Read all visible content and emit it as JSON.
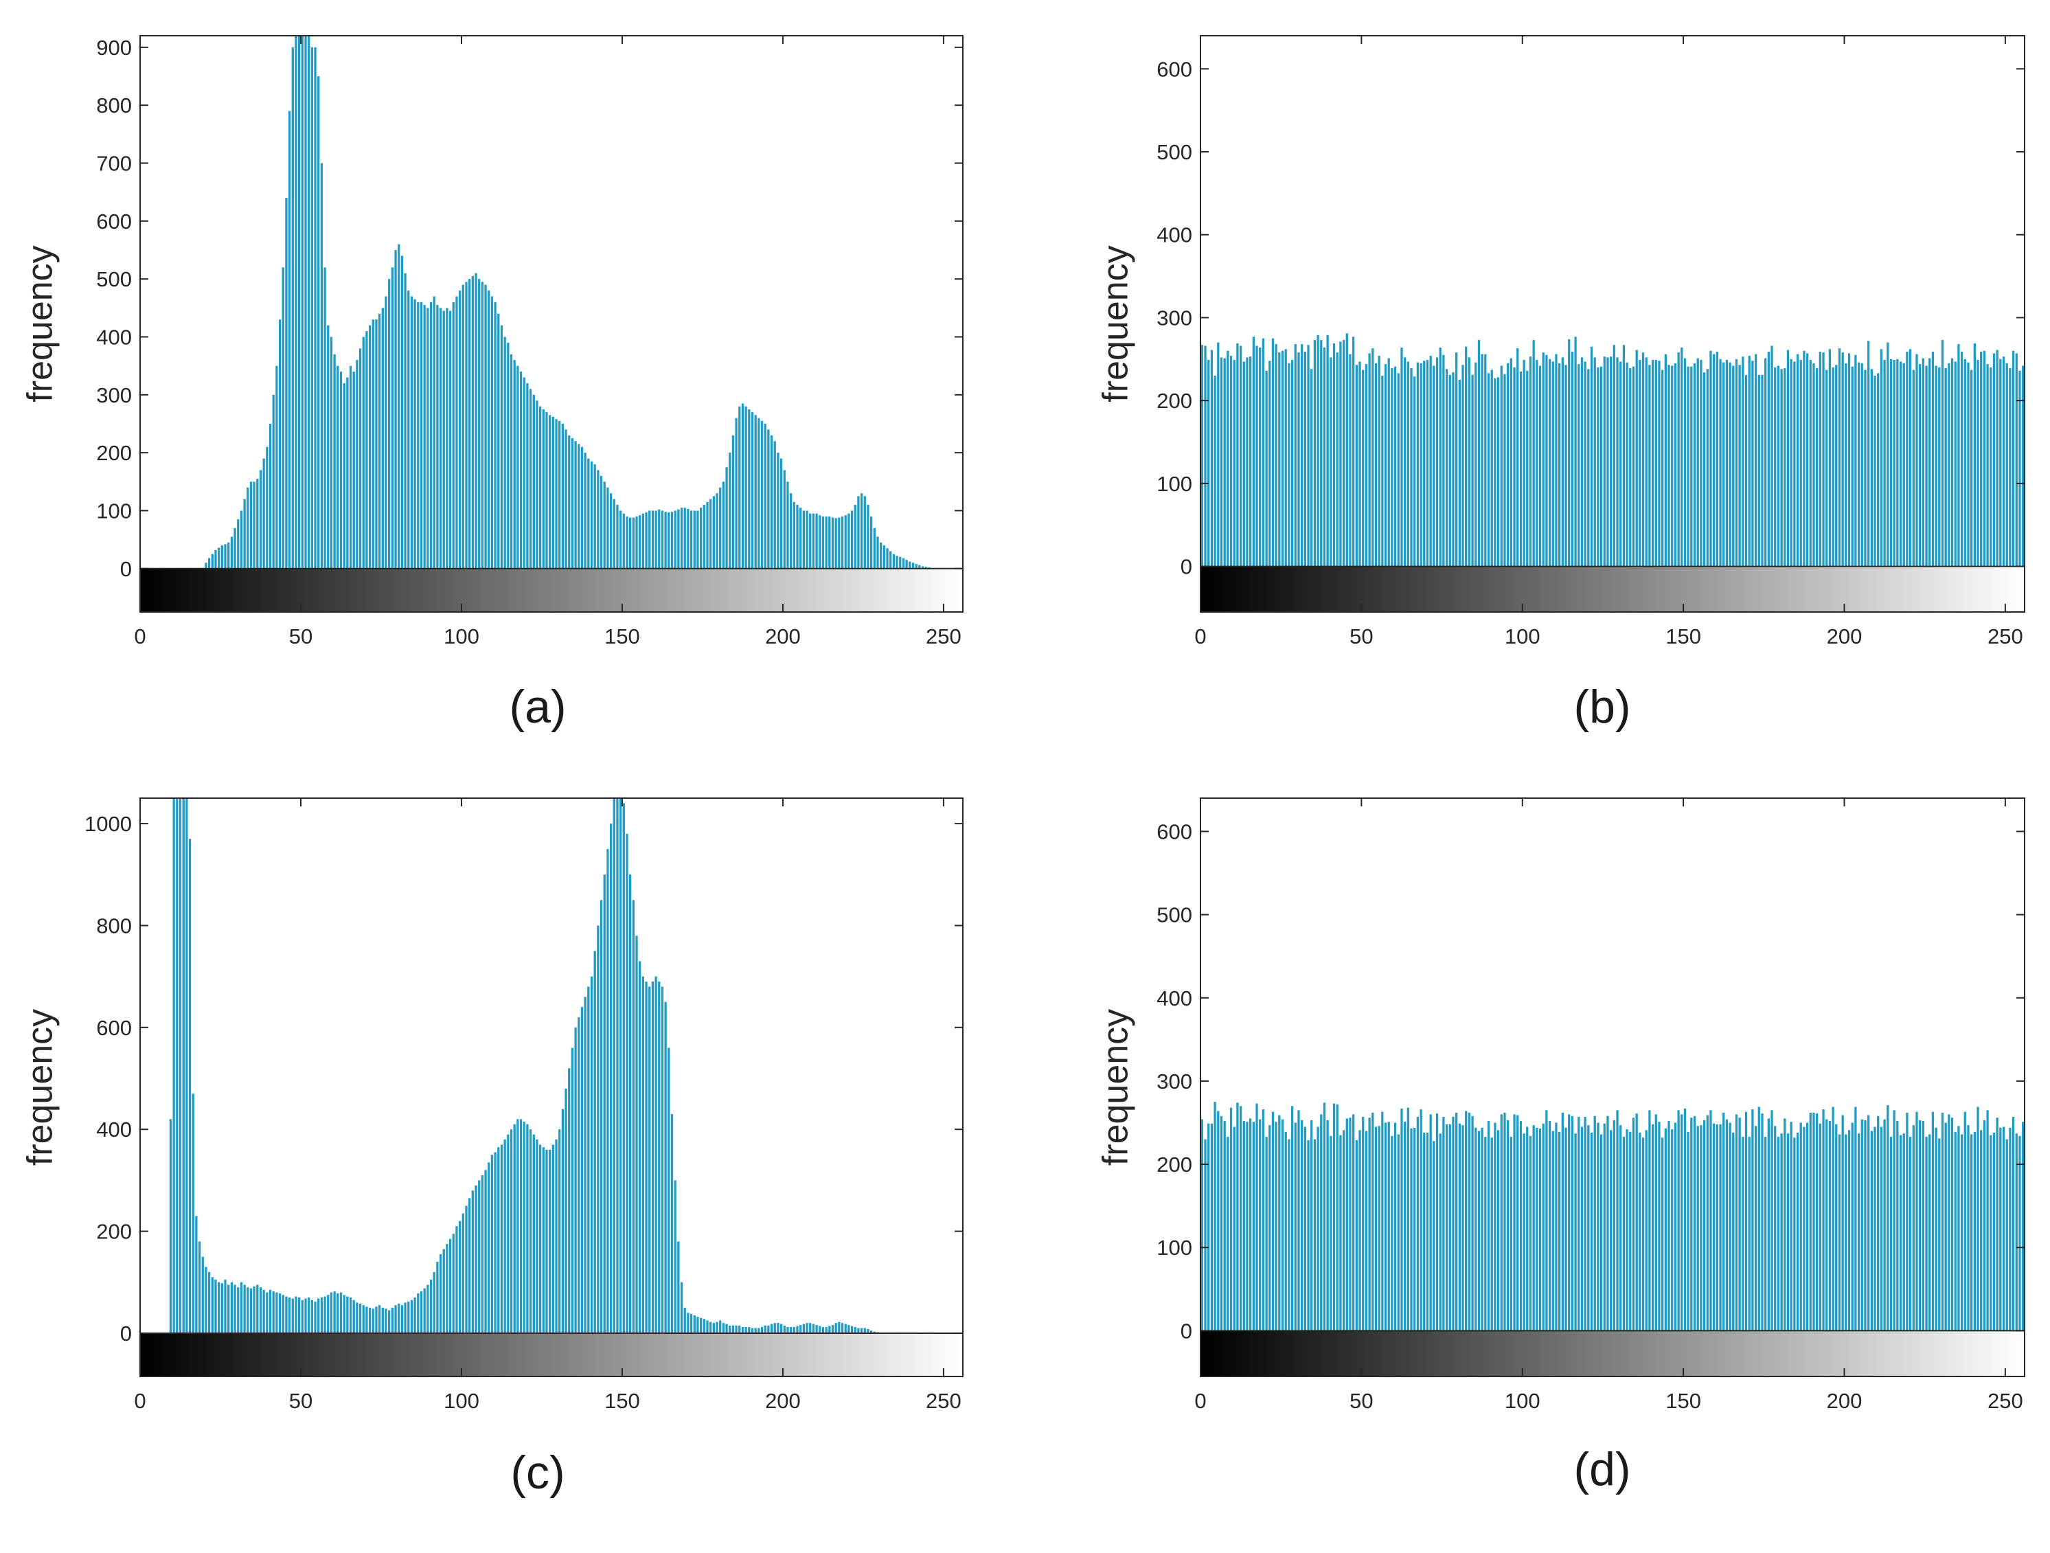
{
  "chart_data": [
    {
      "id": "a",
      "type": "bar",
      "caption": "(a)",
      "ylabel": "frequency",
      "xlabel": "",
      "xlim": [
        0,
        256
      ],
      "ylim": [
        -75,
        920
      ],
      "xticks": [
        0,
        50,
        100,
        150,
        200,
        250
      ],
      "xtick_labels": [
        "0",
        "50",
        "100",
        "150",
        "200",
        "250"
      ],
      "yticks": [
        0,
        100,
        200,
        300,
        400,
        500,
        600,
        700,
        800,
        900
      ],
      "ytick_labels": [
        "0",
        "100",
        "200",
        "300",
        "400",
        "500",
        "600",
        "700",
        "800",
        "900"
      ],
      "colorbar": "grayscale 0-255",
      "bar_color": "#1f9bc4",
      "x_start": 0,
      "values": [
        0,
        0,
        0,
        0,
        0,
        0,
        0,
        0,
        0,
        0,
        0,
        0,
        0,
        0,
        0,
        0,
        0,
        0,
        0,
        0,
        10,
        18,
        25,
        32,
        36,
        40,
        42,
        45,
        55,
        70,
        85,
        100,
        120,
        140,
        150,
        150,
        155,
        170,
        190,
        210,
        250,
        300,
        350,
        430,
        520,
        640,
        790,
        900,
        930,
        940,
        930,
        920,
        920,
        900,
        900,
        850,
        700,
        520,
        420,
        400,
        370,
        350,
        340,
        320,
        330,
        350,
        340,
        360,
        380,
        400,
        410,
        420,
        430,
        430,
        440,
        450,
        470,
        500,
        520,
        550,
        560,
        540,
        510,
        480,
        470,
        465,
        460,
        460,
        455,
        450,
        460,
        470,
        455,
        450,
        445,
        450,
        445,
        460,
        470,
        480,
        490,
        495,
        500,
        505,
        510,
        500,
        495,
        490,
        480,
        470,
        460,
        440,
        420,
        400,
        390,
        370,
        360,
        350,
        340,
        330,
        320,
        310,
        300,
        290,
        280,
        275,
        270,
        265,
        262,
        258,
        255,
        250,
        240,
        230,
        225,
        220,
        215,
        210,
        200,
        190,
        185,
        180,
        170,
        160,
        150,
        140,
        130,
        120,
        110,
        100,
        95,
        90,
        88,
        88,
        90,
        92,
        95,
        97,
        100,
        100,
        100,
        102,
        100,
        98,
        97,
        98,
        100,
        102,
        105,
        105,
        103,
        100,
        100,
        100,
        105,
        110,
        115,
        120,
        125,
        130,
        140,
        150,
        175,
        200,
        230,
        260,
        280,
        285,
        280,
        275,
        270,
        265,
        260,
        255,
        250,
        240,
        230,
        220,
        200,
        190,
        170,
        150,
        130,
        115,
        110,
        105,
        100,
        100,
        95,
        95,
        95,
        92,
        90,
        90,
        90,
        88,
        87,
        88,
        90,
        92,
        95,
        100,
        110,
        125,
        130,
        125,
        110,
        90,
        70,
        55,
        45,
        40,
        35,
        30,
        25,
        22,
        20,
        18,
        15,
        12,
        10,
        8,
        6,
        4,
        3,
        2,
        1,
        0,
        0,
        0,
        0,
        0,
        0,
        0,
        0,
        0
      ]
    },
    {
      "id": "b",
      "type": "bar",
      "caption": "(b)",
      "ylabel": "frequency",
      "xlabel": "",
      "xlim": [
        0,
        256
      ],
      "ylim": [
        -55,
        640
      ],
      "xticks": [
        0,
        50,
        100,
        150,
        200,
        250
      ],
      "xtick_labels": [
        "0",
        "50",
        "100",
        "150",
        "200",
        "250"
      ],
      "yticks": [
        0,
        100,
        200,
        300,
        400,
        500,
        600
      ],
      "ytick_labels": [
        "0",
        "100",
        "200",
        "300",
        "400",
        "500",
        "600"
      ],
      "colorbar": "grayscale 0-255",
      "bar_color": "#1f9bc4",
      "values": [
        267,
        266,
        249,
        261,
        230,
        270,
        252,
        251,
        260,
        254,
        249,
        269,
        266,
        247,
        252,
        253,
        277,
        266,
        264,
        275,
        236,
        248,
        275,
        268,
        258,
        260,
        262,
        245,
        249,
        268,
        258,
        268,
        259,
        267,
        238,
        273,
        279,
        273,
        264,
        279,
        252,
        269,
        258,
        271,
        273,
        281,
        256,
        277,
        243,
        247,
        237,
        244,
        257,
        263,
        245,
        254,
        230,
        244,
        251,
        239,
        241,
        233,
        264,
        252,
        247,
        239,
        229,
        246,
        245,
        248,
        249,
        254,
        242,
        252,
        264,
        255,
        238,
        231,
        234,
        258,
        225,
        243,
        265,
        252,
        231,
        246,
        273,
        256,
        256,
        233,
        237,
        227,
        228,
        242,
        232,
        245,
        251,
        240,
        263,
        235,
        249,
        236,
        253,
        273,
        249,
        242,
        258,
        255,
        250,
        247,
        256,
        245,
        252,
        243,
        274,
        259,
        277,
        244,
        252,
        247,
        238,
        265,
        252,
        240,
        241,
        253,
        252,
        253,
        267,
        252,
        247,
        267,
        246,
        239,
        241,
        261,
        249,
        258,
        252,
        243,
        249,
        249,
        248,
        237,
        256,
        243,
        242,
        245,
        258,
        264,
        251,
        241,
        241,
        245,
        251,
        249,
        234,
        238,
        260,
        256,
        259,
        250,
        246,
        249,
        246,
        242,
        250,
        243,
        253,
        231,
        254,
        248,
        256,
        231,
        231,
        251,
        259,
        266,
        240,
        242,
        238,
        239,
        261,
        250,
        247,
        256,
        249,
        260,
        257,
        249,
        245,
        239,
        259,
        258,
        237,
        262,
        240,
        243,
        263,
        258,
        245,
        257,
        241,
        255,
        246,
        245,
        237,
        272,
        238,
        230,
        233,
        262,
        249,
        270,
        250,
        249,
        250,
        247,
        245,
        259,
        262,
        237,
        256,
        244,
        251,
        242,
        251,
        259,
        242,
        240,
        273,
        239,
        245,
        251,
        247,
        268,
        259,
        250,
        246,
        237,
        269,
        249,
        259,
        260,
        244,
        240,
        257,
        261,
        250,
        253,
        245,
        239,
        260,
        257,
        236,
        242
      ]
    },
    {
      "id": "c",
      "type": "bar",
      "caption": "(c)",
      "ylabel": "frequency",
      "xlabel": "",
      "xlim": [
        0,
        256
      ],
      "ylim": [
        -85,
        1050
      ],
      "xticks": [
        0,
        50,
        100,
        150,
        200,
        250
      ],
      "xtick_labels": [
        "0",
        "50",
        "100",
        "150",
        "200",
        "250"
      ],
      "yticks": [
        0,
        200,
        400,
        600,
        800,
        1000
      ],
      "ytick_labels": [
        "0",
        "200",
        "400",
        "600",
        "800",
        "1000"
      ],
      "colorbar": "grayscale 0-255",
      "bar_color": "#1f9bc4",
      "values": [
        0,
        0,
        0,
        0,
        0,
        0,
        0,
        0,
        0,
        420,
        1060,
        1070,
        1065,
        1060,
        1050,
        970,
        470,
        230,
        180,
        150,
        130,
        120,
        110,
        105,
        100,
        98,
        105,
        95,
        100,
        95,
        90,
        100,
        95,
        90,
        88,
        92,
        95,
        90,
        85,
        80,
        85,
        82,
        80,
        78,
        75,
        72,
        70,
        68,
        72,
        70,
        65,
        68,
        70,
        65,
        62,
        68,
        70,
        72,
        75,
        80,
        82,
        78,
        80,
        75,
        72,
        70,
        65,
        60,
        58,
        55,
        52,
        50,
        48,
        52,
        55,
        50,
        48,
        45,
        50,
        55,
        58,
        55,
        60,
        62,
        65,
        70,
        78,
        82,
        88,
        95,
        105,
        120,
        140,
        155,
        165,
        175,
        185,
        195,
        210,
        220,
        235,
        250,
        265,
        280,
        290,
        300,
        310,
        320,
        335,
        350,
        355,
        365,
        370,
        380,
        390,
        400,
        410,
        420,
        420,
        415,
        410,
        400,
        390,
        380,
        370,
        365,
        360,
        360,
        370,
        380,
        400,
        440,
        480,
        520,
        560,
        600,
        620,
        640,
        660,
        680,
        700,
        750,
        800,
        850,
        900,
        950,
        1000,
        1055,
        1060,
        1060,
        1040,
        980,
        900,
        850,
        780,
        730,
        700,
        690,
        680,
        690,
        700,
        690,
        680,
        650,
        560,
        430,
        300,
        180,
        100,
        50,
        40,
        38,
        35,
        32,
        30,
        28,
        25,
        22,
        20,
        22,
        25,
        20,
        18,
        15,
        15,
        15,
        15,
        12,
        12,
        12,
        10,
        10,
        10,
        12,
        15,
        15,
        18,
        20,
        20,
        18,
        15,
        12,
        12,
        12,
        14,
        16,
        18,
        20,
        20,
        18,
        16,
        14,
        12,
        12,
        14,
        16,
        20,
        22,
        20,
        18,
        16,
        14,
        12,
        10,
        10,
        10,
        8,
        5,
        3,
        2,
        1,
        0,
        0,
        0,
        0,
        0,
        0,
        0,
        0,
        0
      ]
    },
    {
      "id": "d",
      "type": "bar",
      "caption": "(d)",
      "ylabel": "frequency",
      "xlabel": "",
      "xlim": [
        0,
        256
      ],
      "ylim": [
        -55,
        640
      ],
      "xticks": [
        0,
        50,
        100,
        150,
        200,
        250
      ],
      "xtick_labels": [
        "0",
        "50",
        "100",
        "150",
        "200",
        "250"
      ],
      "yticks": [
        0,
        100,
        200,
        300,
        400,
        500,
        600
      ],
      "ytick_labels": [
        "0",
        "100",
        "200",
        "300",
        "400",
        "500",
        "600"
      ],
      "colorbar": "grayscale 0-255",
      "bar_color": "#1f9bc4",
      "values": [
        254,
        230,
        249,
        249,
        275,
        264,
        258,
        252,
        233,
        268,
        245,
        274,
        270,
        252,
        251,
        255,
        251,
        273,
        254,
        266,
        233,
        247,
        263,
        251,
        259,
        254,
        239,
        230,
        270,
        250,
        265,
        253,
        245,
        229,
        253,
        230,
        245,
        260,
        274,
        253,
        234,
        273,
        272,
        235,
        241,
        255,
        256,
        260,
        229,
        241,
        257,
        240,
        256,
        262,
        245,
        246,
        263,
        250,
        251,
        234,
        250,
        236,
        267,
        251,
        268,
        243,
        244,
        257,
        266,
        238,
        238,
        260,
        228,
        261,
        237,
        257,
        248,
        248,
        257,
        262,
        249,
        247,
        264,
        262,
        258,
        244,
        240,
        244,
        233,
        252,
        232,
        250,
        241,
        260,
        262,
        253,
        233,
        260,
        259,
        252,
        237,
        245,
        234,
        247,
        244,
        243,
        249,
        265,
        252,
        240,
        250,
        239,
        262,
        244,
        260,
        258,
        237,
        257,
        245,
        257,
        247,
        238,
        258,
        250,
        236,
        249,
        258,
        241,
        253,
        265,
        247,
        233,
        242,
        239,
        256,
        261,
        238,
        232,
        241,
        265,
        248,
        260,
        251,
        232,
        243,
        252,
        242,
        250,
        265,
        260,
        267,
        239,
        256,
        258,
        246,
        247,
        253,
        259,
        265,
        249,
        248,
        248,
        262,
        254,
        250,
        238,
        260,
        256,
        233,
        263,
        233,
        266,
        246,
        269,
        261,
        233,
        255,
        265,
        246,
        233,
        237,
        255,
        237,
        251,
        232,
        238,
        250,
        245,
        250,
        262,
        262,
        261,
        249,
        266,
        254,
        252,
        269,
        248,
        236,
        259,
        236,
        241,
        250,
        269,
        237,
        254,
        253,
        259,
        240,
        245,
        258,
        245,
        254,
        271,
        233,
        265,
        252,
        235,
        237,
        262,
        233,
        247,
        263,
        253,
        252,
        233,
        236,
        263,
        244,
        231,
        262,
        250,
        260,
        256,
        239,
        246,
        236,
        263,
        247,
        236,
        239,
        269,
        241,
        253,
        265,
        235,
        238,
        256,
        244,
        245,
        230,
        244,
        257,
        237,
        234,
        251
      ]
    }
  ]
}
